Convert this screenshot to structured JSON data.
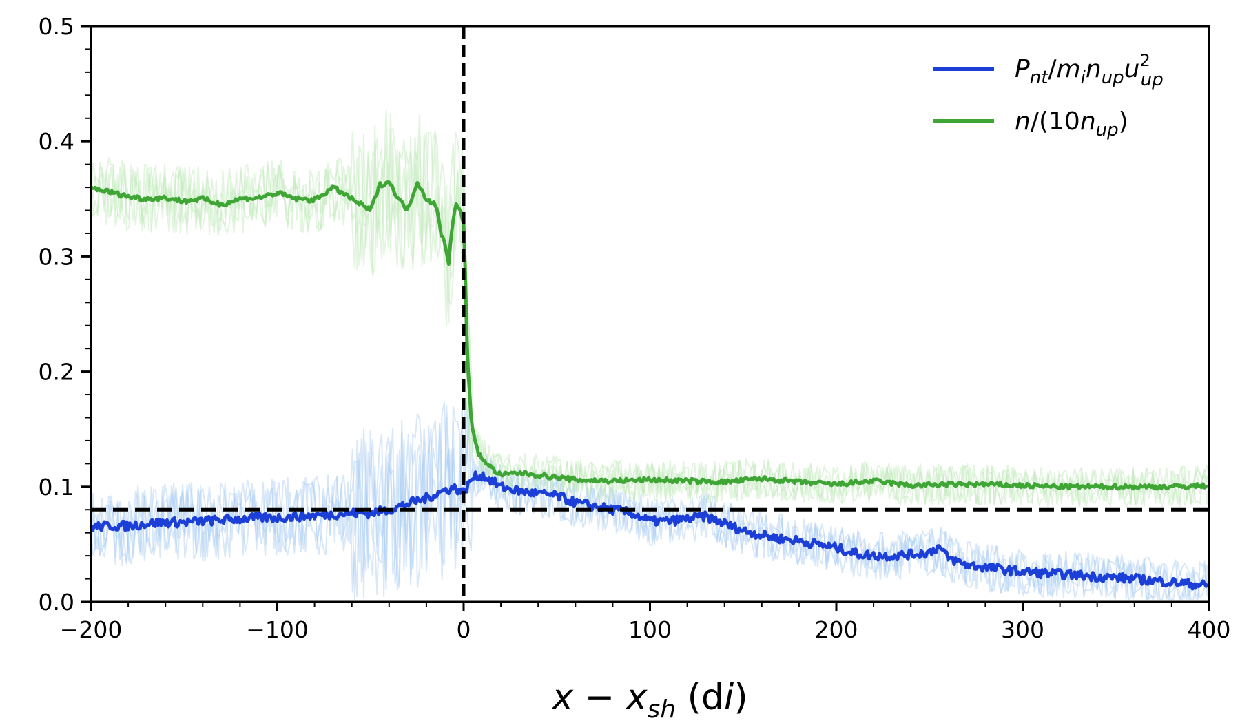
{
  "chart_data": {
    "type": "line",
    "xlabel": {
      "base": "x − x",
      "sub": "sh",
      "tail_open": " (d",
      "tail_sub": "i",
      "tail_close": ")"
    },
    "ylabel": "",
    "xlim": [
      -200,
      400
    ],
    "ylim": [
      0,
      0.5
    ],
    "x_ticks": [
      -200,
      -100,
      0,
      100,
      200,
      300,
      400
    ],
    "x_tick_labels": [
      "−200",
      "−100",
      "0",
      "100",
      "200",
      "300",
      "400"
    ],
    "y_ticks": [
      0.0,
      0.1,
      0.2,
      0.3,
      0.4,
      0.5
    ],
    "y_tick_labels": [
      "0.0",
      "0.1",
      "0.2",
      "0.3",
      "0.4",
      "0.5"
    ],
    "grid": false,
    "legend_position": "top-right",
    "reference_lines": {
      "vertical_x": 0,
      "horizontal_y": 0.08,
      "color": "#000000",
      "style": "dashed"
    },
    "series": [
      {
        "name": "Pnt/minupu2up",
        "legend": {
          "p": "P",
          "p_sub": "nt",
          "slash": "/",
          "m": "m",
          "m_sub": "i",
          "n": "n",
          "n_sub": "up",
          "u": "u",
          "u_sup": "2",
          "u_sub": "up"
        },
        "color": "#1c3fd8",
        "band_color": "#a9cdf2",
        "band_spread": 0.035,
        "x": [
          -200,
          -190,
          -180,
          -170,
          -160,
          -150,
          -140,
          -130,
          -120,
          -110,
          -100,
          -90,
          -80,
          -70,
          -60,
          -50,
          -40,
          -30,
          -20,
          -10,
          -5,
          0,
          5,
          10,
          15,
          20,
          30,
          40,
          50,
          60,
          70,
          80,
          90,
          100,
          110,
          120,
          130,
          140,
          150,
          160,
          170,
          180,
          190,
          200,
          210,
          220,
          230,
          240,
          250,
          255,
          260,
          270,
          280,
          290,
          300,
          320,
          340,
          360,
          380,
          400
        ],
        "y": [
          0.065,
          0.066,
          0.066,
          0.068,
          0.069,
          0.069,
          0.07,
          0.071,
          0.072,
          0.073,
          0.073,
          0.074,
          0.075,
          0.076,
          0.077,
          0.077,
          0.08,
          0.085,
          0.09,
          0.097,
          0.099,
          0.095,
          0.108,
          0.11,
          0.105,
          0.1,
          0.096,
          0.094,
          0.092,
          0.086,
          0.083,
          0.08,
          0.077,
          0.07,
          0.07,
          0.072,
          0.074,
          0.068,
          0.062,
          0.058,
          0.055,
          0.053,
          0.05,
          0.047,
          0.042,
          0.04,
          0.04,
          0.041,
          0.043,
          0.048,
          0.038,
          0.032,
          0.03,
          0.028,
          0.026,
          0.024,
          0.022,
          0.02,
          0.017,
          0.014
        ]
      },
      {
        "name": "n/(10nup)",
        "legend": {
          "n": "n",
          "mid": "/(10",
          "n2": "n",
          "n2_sub": "up",
          "close": ")"
        },
        "color": "#3fa535",
        "band_color": "#bfe9b8",
        "band_spread": 0.03,
        "x": [
          -200,
          -190,
          -180,
          -170,
          -160,
          -150,
          -140,
          -130,
          -120,
          -110,
          -100,
          -90,
          -80,
          -70,
          -60,
          -55,
          -50,
          -45,
          -40,
          -35,
          -30,
          -25,
          -20,
          -15,
          -12,
          -10,
          -8,
          -6,
          -4,
          -2,
          0,
          1,
          2,
          4,
          6,
          8,
          10,
          15,
          20,
          30,
          40,
          50,
          60,
          80,
          100,
          120,
          140,
          160,
          180,
          200,
          220,
          240,
          260,
          280,
          300,
          320,
          340,
          360,
          380,
          400
        ],
        "y": [
          0.36,
          0.356,
          0.352,
          0.35,
          0.351,
          0.348,
          0.35,
          0.345,
          0.35,
          0.351,
          0.355,
          0.35,
          0.349,
          0.36,
          0.35,
          0.345,
          0.34,
          0.362,
          0.365,
          0.35,
          0.34,
          0.365,
          0.35,
          0.345,
          0.32,
          0.31,
          0.295,
          0.33,
          0.345,
          0.34,
          0.33,
          0.28,
          0.21,
          0.16,
          0.14,
          0.128,
          0.125,
          0.116,
          0.11,
          0.112,
          0.11,
          0.108,
          0.106,
          0.105,
          0.106,
          0.105,
          0.104,
          0.107,
          0.104,
          0.102,
          0.105,
          0.101,
          0.102,
          0.102,
          0.101,
          0.1,
          0.1,
          0.1,
          0.1,
          0.101
        ]
      }
    ]
  }
}
